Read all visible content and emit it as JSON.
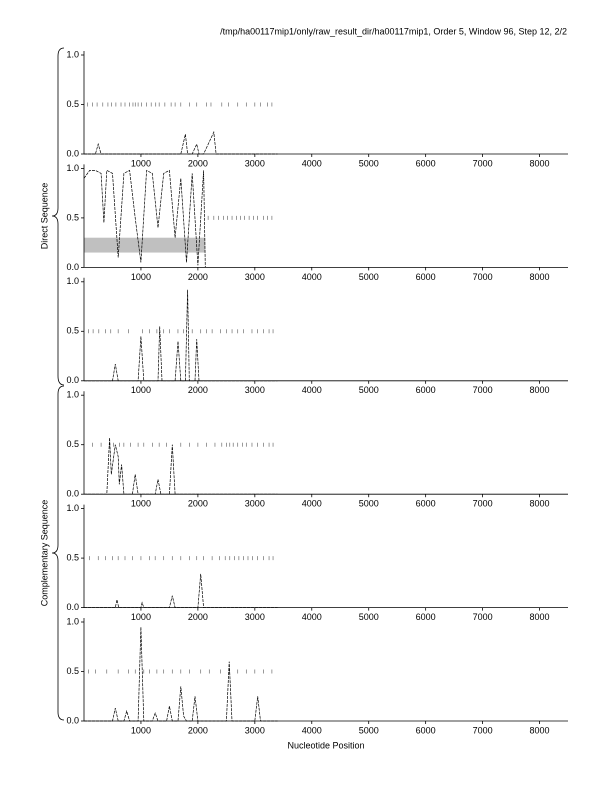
{
  "title": "/tmp/ha00117mip1/only/raw_result_dir/ha00117mip1, Order 5, Window 96, Step 12, 2/2",
  "x_label": "Nucleotide Position",
  "group_labels": [
    "Direct Sequence",
    "Complementary Sequence"
  ],
  "chart_data": [
    {
      "type": "line",
      "xlim": [
        0,
        8500
      ],
      "ylim": [
        0,
        1
      ],
      "xticks": [
        1000,
        2000,
        3000,
        4000,
        5000,
        6000,
        7000,
        8000
      ],
      "yticks": [
        {
          "value": 0,
          "label": "0.0"
        },
        {
          "value": 0.5,
          "label": "0.5"
        },
        {
          "value": 1,
          "label": "1.0"
        }
      ],
      "color": "#000000",
      "marker_level": 0.5,
      "markers": [
        60,
        150,
        230,
        330,
        420,
        480,
        560,
        650,
        720,
        800,
        860,
        900,
        950,
        1010,
        1100,
        1180,
        1260,
        1320,
        1420,
        1530,
        1600,
        1700,
        1850,
        1980,
        2150,
        2230,
        2420,
        2540,
        2700,
        2850,
        3000,
        3100,
        3220,
        3300
      ],
      "x": [
        0,
        200,
        250,
        300,
        1700,
        1780,
        1820,
        1900,
        1980,
        2020,
        2100,
        2280,
        2320,
        2360,
        3400
      ],
      "values": [
        0,
        0,
        0.1,
        0,
        0,
        0.2,
        0,
        0,
        0.1,
        0,
        0,
        0.22,
        0,
        0,
        0
      ]
    },
    {
      "type": "line",
      "xlim": [
        0,
        8500
      ],
      "ylim": [
        0,
        1
      ],
      "xticks": [
        1000,
        2000,
        3000,
        4000,
        5000,
        6000,
        7000,
        8000
      ],
      "yticks": [
        {
          "value": 0,
          "label": "0.0"
        },
        {
          "value": 0.5,
          "label": "0.5"
        },
        {
          "value": 1,
          "label": "1.0"
        }
      ],
      "color": "#000000",
      "marker_level": 0.5,
      "markers": [
        2180,
        2280,
        2360,
        2450,
        2520,
        2600,
        2680,
        2750,
        2820,
        2900,
        2980,
        3050,
        3150,
        3220,
        3300
      ],
      "band": {
        "x": [
          0,
          2130
        ],
        "y": [
          0.15,
          0.3
        ],
        "color": "#c0c0c0"
      },
      "x": [
        0,
        100,
        200,
        300,
        350,
        400,
        500,
        600,
        700,
        800,
        900,
        1000,
        1100,
        1200,
        1300,
        1400,
        1500,
        1600,
        1700,
        1800,
        1900,
        2000,
        2100,
        2130
      ],
      "values": [
        0.9,
        0.98,
        0.98,
        0.95,
        0.45,
        0.98,
        0.95,
        0.1,
        0.95,
        0.98,
        0.5,
        0.05,
        0.98,
        0.95,
        0.4,
        0.95,
        0.98,
        0.3,
        0.9,
        0.05,
        0.95,
        0.02,
        0.98,
        0
      ]
    },
    {
      "type": "line",
      "xlim": [
        0,
        8500
      ],
      "ylim": [
        0,
        1
      ],
      "xticks": [
        1000,
        2000,
        3000,
        4000,
        5000,
        6000,
        7000,
        8000
      ],
      "yticks": [
        {
          "value": 0,
          "label": "0.0"
        },
        {
          "value": 0.5,
          "label": "0.5"
        },
        {
          "value": 1,
          "label": "1.0"
        }
      ],
      "color": "#000000",
      "marker_level": 0.5,
      "markers": [
        80,
        160,
        260,
        380,
        470,
        600,
        780,
        1030,
        1150,
        1280,
        1400,
        1500,
        1650,
        1750,
        1900,
        2050,
        2150,
        2250,
        2400,
        2500,
        2600,
        2700,
        2800,
        2950,
        3050,
        3150,
        3250,
        3320
      ],
      "x": [
        0,
        500,
        550,
        600,
        950,
        1000,
        1050,
        1300,
        1330,
        1370,
        1600,
        1650,
        1700,
        1780,
        1820,
        1850,
        1900,
        1950,
        1980,
        2020,
        3400
      ],
      "values": [
        0,
        0,
        0.17,
        0,
        0,
        0.45,
        0,
        0,
        0.55,
        0,
        0,
        0.4,
        0,
        0,
        0.92,
        0,
        0,
        0,
        0.42,
        0,
        0
      ]
    },
    {
      "type": "line",
      "xlim": [
        0,
        8500
      ],
      "ylim": [
        0,
        1
      ],
      "xticks": [
        1000,
        2000,
        3000,
        4000,
        5000,
        6000,
        7000,
        8000
      ],
      "yticks": [
        {
          "value": 0,
          "label": "0.0"
        },
        {
          "value": 0.5,
          "label": "0.5"
        },
        {
          "value": 1,
          "label": "1.0"
        }
      ],
      "color": "#000000",
      "marker_level": 0.5,
      "markers": [
        150,
        300,
        450,
        520,
        620,
        700,
        820,
        950,
        1050,
        1200,
        1320,
        1450,
        1700,
        1850,
        2000,
        2150,
        2300,
        2420,
        2500,
        2560,
        2620,
        2700,
        2780,
        2850,
        2950,
        3050,
        3150,
        3250,
        3320
      ],
      "x": [
        0,
        400,
        450,
        480,
        550,
        600,
        620,
        660,
        700,
        850,
        900,
        950,
        1250,
        1300,
        1350,
        1500,
        1550,
        1600,
        3400
      ],
      "values": [
        0,
        0,
        0.57,
        0.2,
        0.5,
        0.38,
        0.1,
        0.3,
        0,
        0,
        0.2,
        0,
        0,
        0.15,
        0,
        0,
        0.5,
        0,
        0
      ]
    },
    {
      "type": "line",
      "xlim": [
        0,
        8500
      ],
      "ylim": [
        0,
        1
      ],
      "xticks": [
        1000,
        2000,
        3000,
        4000,
        5000,
        6000,
        7000,
        8000
      ],
      "yticks": [
        {
          "value": 0,
          "label": "0.0"
        },
        {
          "value": 0.5,
          "label": "0.5"
        },
        {
          "value": 1,
          "label": "1.0"
        }
      ],
      "color": "#000000",
      "marker_level": 0.5,
      "markers": [
        100,
        250,
        380,
        500,
        600,
        720,
        850,
        1000,
        1150,
        1250,
        1400,
        1550,
        1700,
        1850,
        1980,
        2100,
        2250,
        2380,
        2480,
        2560,
        2640,
        2720,
        2800,
        2880,
        2960,
        3050,
        3150,
        3250,
        3320
      ],
      "x": [
        0,
        550,
        580,
        610,
        1000,
        1020,
        1050,
        1500,
        1550,
        1600,
        2000,
        2050,
        2100,
        3400
      ],
      "values": [
        0,
        0,
        0.08,
        0,
        0,
        0.05,
        0,
        0,
        0.12,
        0,
        0,
        0.34,
        0,
        0
      ]
    },
    {
      "type": "line",
      "xlim": [
        0,
        8500
      ],
      "ylim": [
        0,
        1
      ],
      "xticks": [
        1000,
        2000,
        3000,
        4000,
        5000,
        6000,
        7000,
        8000
      ],
      "yticks": [
        {
          "value": 0,
          "label": "0.0"
        },
        {
          "value": 0.5,
          "label": "0.5"
        },
        {
          "value": 1,
          "label": "1.0"
        }
      ],
      "color": "#000000",
      "marker_level": 0.5,
      "markers": [
        80,
        200,
        400,
        600,
        780,
        900,
        1050,
        1150,
        1280,
        1400,
        1550,
        1700,
        1850,
        2050,
        2200,
        2400,
        2550,
        2700,
        2850,
        3000,
        3150,
        3300
      ],
      "x": [
        0,
        500,
        550,
        600,
        700,
        750,
        800,
        950,
        1000,
        1050,
        1200,
        1250,
        1300,
        1450,
        1500,
        1550,
        1650,
        1700,
        1750,
        1800,
        1900,
        1950,
        2000,
        2500,
        2550,
        2600,
        3000,
        3050,
        3100,
        3400
      ],
      "values": [
        0,
        0,
        0.13,
        0,
        0,
        0.1,
        0,
        0,
        0.95,
        0,
        0,
        0.08,
        0,
        0,
        0.15,
        0,
        0,
        0.35,
        0.05,
        0,
        0,
        0.25,
        0,
        0,
        0.6,
        0,
        0,
        0.25,
        0,
        0
      ]
    }
  ]
}
